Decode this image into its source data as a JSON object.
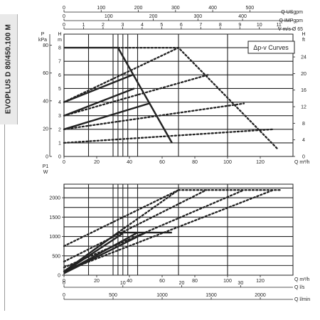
{
  "side_title": "EVOPLUS D 80/450.100 M",
  "legend_box": "Δp-v Curves",
  "chart_data": [
    {
      "type": "line",
      "panel": "head",
      "x_axis": {
        "label": "Q m³/h",
        "range": [
          0,
          140
        ],
        "ticks": [
          0,
          20,
          40,
          60,
          80,
          100,
          120
        ]
      },
      "top_axes": [
        {
          "label": "Q USgpm",
          "range": [
            0,
            616
          ],
          "ticks": [
            0,
            100,
            200,
            300,
            400,
            500
          ]
        },
        {
          "label": "Q IMPgpm",
          "range": [
            0,
            513
          ],
          "ticks": [
            0,
            100,
            200,
            300,
            400
          ]
        },
        {
          "label": "V m/s Ø 65",
          "range": [
            0,
            11.72
          ],
          "ticks": [
            0,
            1,
            2,
            3,
            4,
            5,
            6,
            7,
            8,
            9,
            10,
            11
          ]
        }
      ],
      "left_axes": [
        {
          "label": "P",
          "unit": "kPa",
          "range": [
            0,
            88
          ],
          "ticks": [
            0,
            20,
            40,
            60,
            80
          ]
        },
        {
          "label": "H",
          "unit": "m",
          "range": [
            0,
            9
          ],
          "ticks": [
            0,
            1,
            2,
            3,
            4,
            5,
            6,
            7,
            8
          ]
        }
      ],
      "right_axis": {
        "label": "H",
        "unit": "ft",
        "range": [
          0,
          29.5
        ],
        "ticks": [
          0,
          4,
          8,
          12,
          16,
          20,
          24
        ]
      },
      "grid_x": [
        0,
        15,
        30,
        33,
        36,
        39,
        45,
        70,
        100
      ],
      "grid_y": [
        0,
        1,
        2,
        3,
        4,
        5,
        6,
        7,
        8,
        9
      ],
      "series": [
        {
          "style": "solid",
          "points": [
            [
              0,
              4
            ],
            [
              42,
              6
            ]
          ]
        },
        {
          "style": "solid",
          "points": [
            [
              0,
              3
            ],
            [
              43,
              5
            ]
          ]
        },
        {
          "style": "solid",
          "points": [
            [
              0,
              2
            ],
            [
              52,
              3.9
            ]
          ]
        },
        {
          "style": "solid",
          "points": [
            [
              0,
              8
            ],
            [
              33,
              8
            ],
            [
              66,
              1
            ]
          ]
        },
        {
          "style": "dotted",
          "points": [
            [
              0,
              4
            ],
            [
              70,
              8
            ]
          ]
        },
        {
          "style": "dotted",
          "points": [
            [
              0,
              3
            ],
            [
              88,
              6
            ]
          ]
        },
        {
          "style": "dotted",
          "points": [
            [
              0,
              2
            ],
            [
              110,
              3.9
            ]
          ]
        },
        {
          "style": "dotted",
          "points": [
            [
              0,
              1
            ],
            [
              128,
              2
            ]
          ]
        },
        {
          "style": "dotted",
          "points": [
            [
              33,
              8
            ],
            [
              70,
              8
            ],
            [
              131,
              0.5
            ]
          ]
        }
      ]
    },
    {
      "type": "line",
      "panel": "power",
      "x_axis": {
        "label": "Q m³/h",
        "range": [
          0,
          140
        ],
        "ticks": [
          0,
          20,
          40,
          60,
          80,
          100,
          120
        ]
      },
      "bottom_axes": [
        {
          "label": "Q l/s",
          "range": [
            0,
            38.9
          ],
          "ticks": [
            0,
            10,
            20,
            30
          ]
        },
        {
          "label": "Q l/min",
          "range": [
            0,
            2333
          ],
          "ticks": [
            0,
            500,
            1000,
            1500,
            2000
          ]
        }
      ],
      "y_axis": {
        "label": "P1",
        "unit": "W",
        "range": [
          0,
          2350
        ],
        "ticks": [
          0,
          500,
          1000,
          1500,
          2000
        ]
      },
      "grid_x": [
        0,
        15,
        30,
        33,
        36,
        39,
        45,
        70,
        100
      ],
      "grid_y": [
        0,
        250,
        500,
        750,
        1000,
        1250,
        1500,
        1750,
        2000,
        2250
      ],
      "series": [
        {
          "style": "solid",
          "points": [
            [
              0,
              100
            ],
            [
              33,
              1100
            ],
            [
              66,
              1100
            ]
          ]
        },
        {
          "style": "solid",
          "points": [
            [
              0,
              80
            ],
            [
              36,
              1080
            ]
          ]
        },
        {
          "style": "solid",
          "points": [
            [
              0,
              60
            ],
            [
              45,
              1100
            ]
          ]
        },
        {
          "style": "solid",
          "points": [
            [
              0,
              50
            ],
            [
              50,
              1100
            ]
          ]
        },
        {
          "style": "dotted",
          "points": [
            [
              0,
              750
            ],
            [
              70,
              2200
            ]
          ]
        },
        {
          "style": "dotted",
          "points": [
            [
              0,
              350
            ],
            [
              87,
              2200
            ]
          ]
        },
        {
          "style": "dotted",
          "points": [
            [
              0,
              200
            ],
            [
              110,
              2200
            ]
          ]
        },
        {
          "style": "dotted",
          "points": [
            [
              0,
              100
            ],
            [
              128,
              2200
            ]
          ]
        },
        {
          "style": "dotted",
          "points": [
            [
              33,
              1100
            ],
            [
              70,
              2200
            ],
            [
              133,
              2200
            ]
          ]
        }
      ]
    }
  ]
}
